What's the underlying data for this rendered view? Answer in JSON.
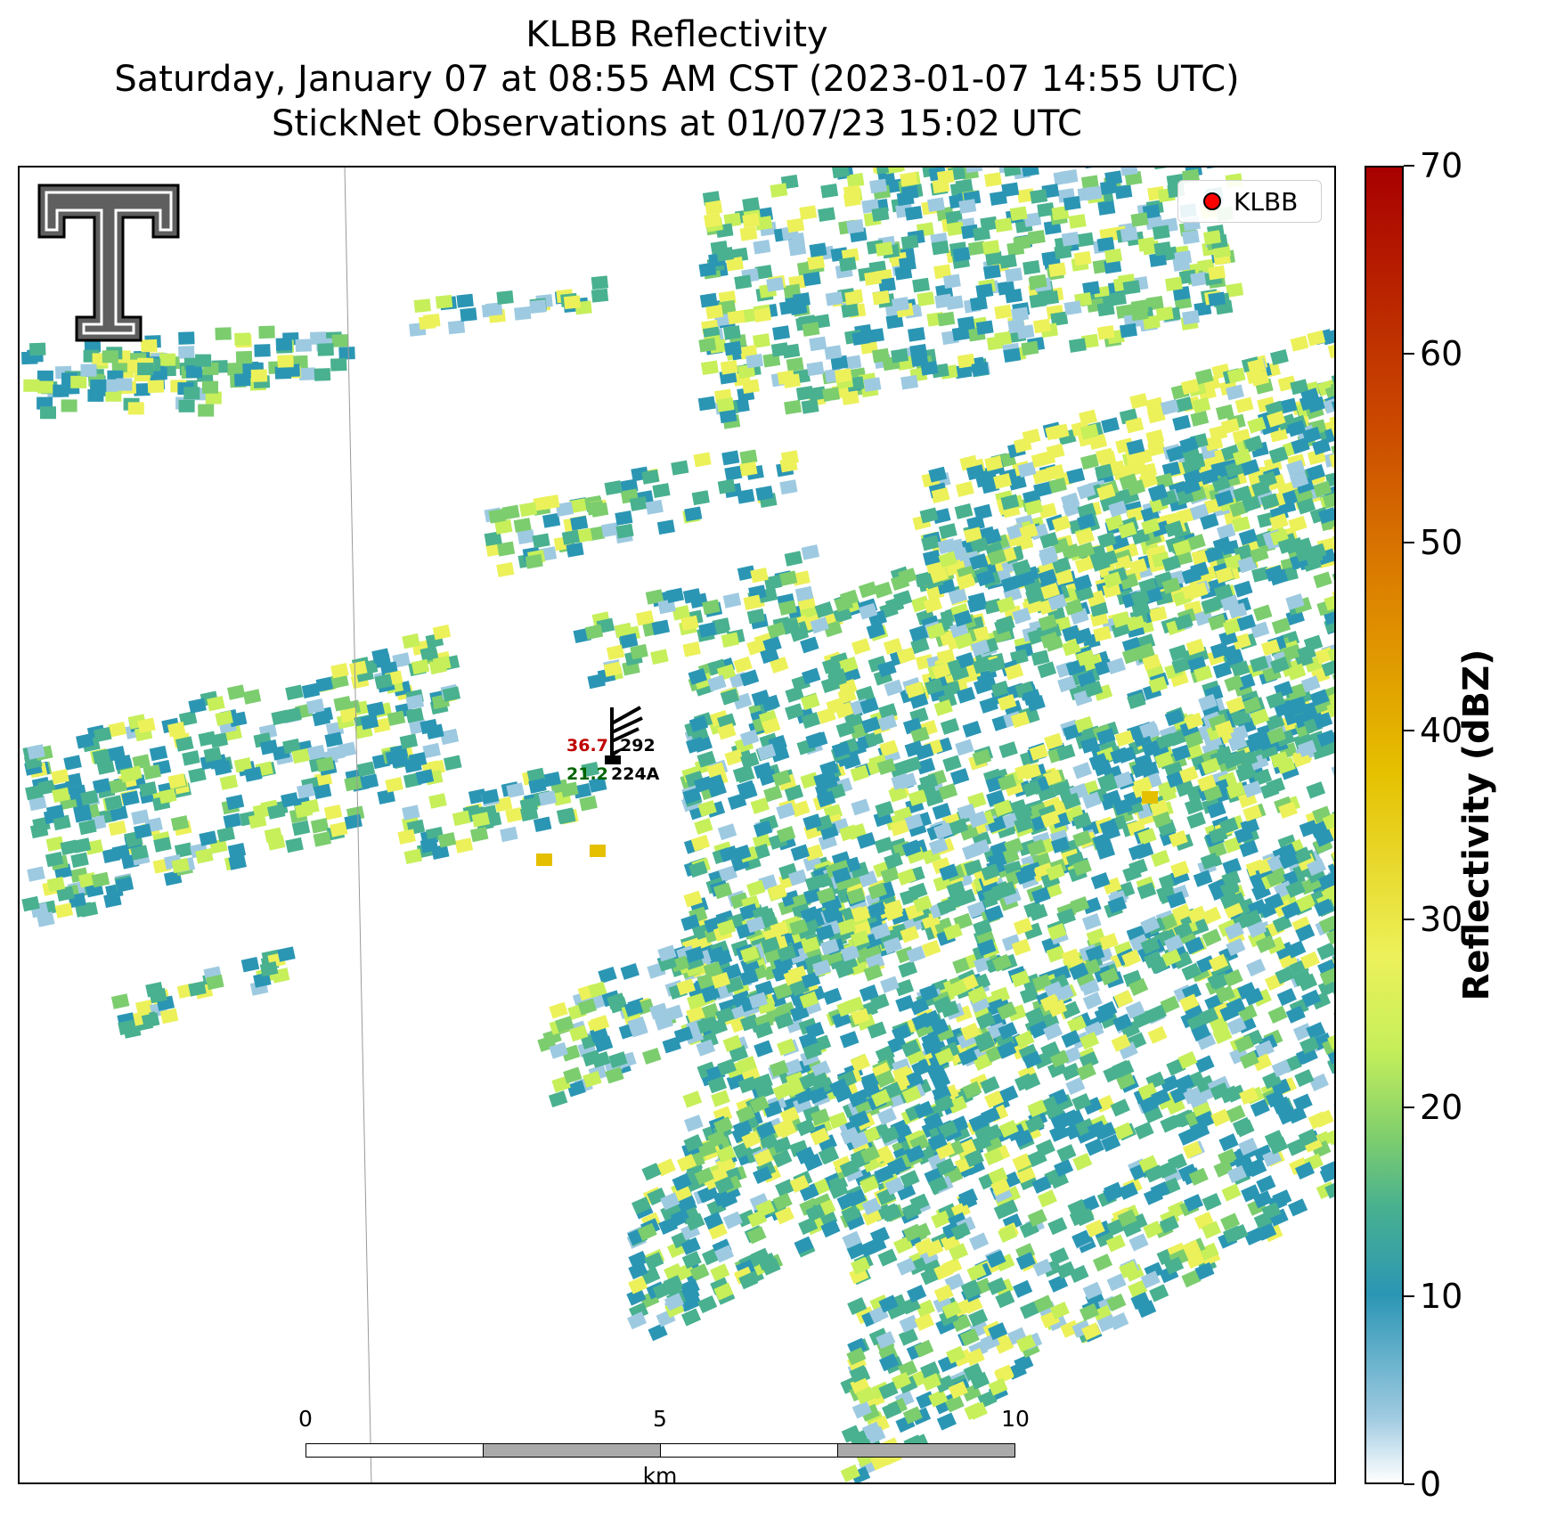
{
  "title": {
    "line1": "KLBB Reflectivity",
    "line2": "Saturday, January 07 at 08:55 AM CST (2023-01-07 14:55 UTC)",
    "line3": "StickNet Observations at 01/07/23 15:02 UTC"
  },
  "legend": {
    "label": "KLBB",
    "marker_color": "#ff0000"
  },
  "scalebar": {
    "ticks": [
      "0",
      "5",
      "10"
    ],
    "unit": "km"
  },
  "colorbar": {
    "label": "Reflectivity (dBZ)",
    "ticks": [
      "0",
      "10",
      "20",
      "30",
      "40",
      "50",
      "60",
      "70"
    ],
    "min": 0,
    "max": 70
  },
  "station": {
    "temperature": "36.7",
    "dewpoint": "21.2",
    "pressure_code": "292",
    "id": "224A",
    "temperature_color": "#c00000",
    "dewpoint_color": "#006400"
  },
  "logo": {
    "name": "texas-tech-double-t-logo"
  },
  "colors": {
    "low": "#9ecae1",
    "mid": "#2b96b4",
    "green": "#49b18f",
    "light_green": "#7ccd6e",
    "yellow_green": "#c6ef5a",
    "yellow": "#ecf15a",
    "orange": "#e5c000"
  }
}
